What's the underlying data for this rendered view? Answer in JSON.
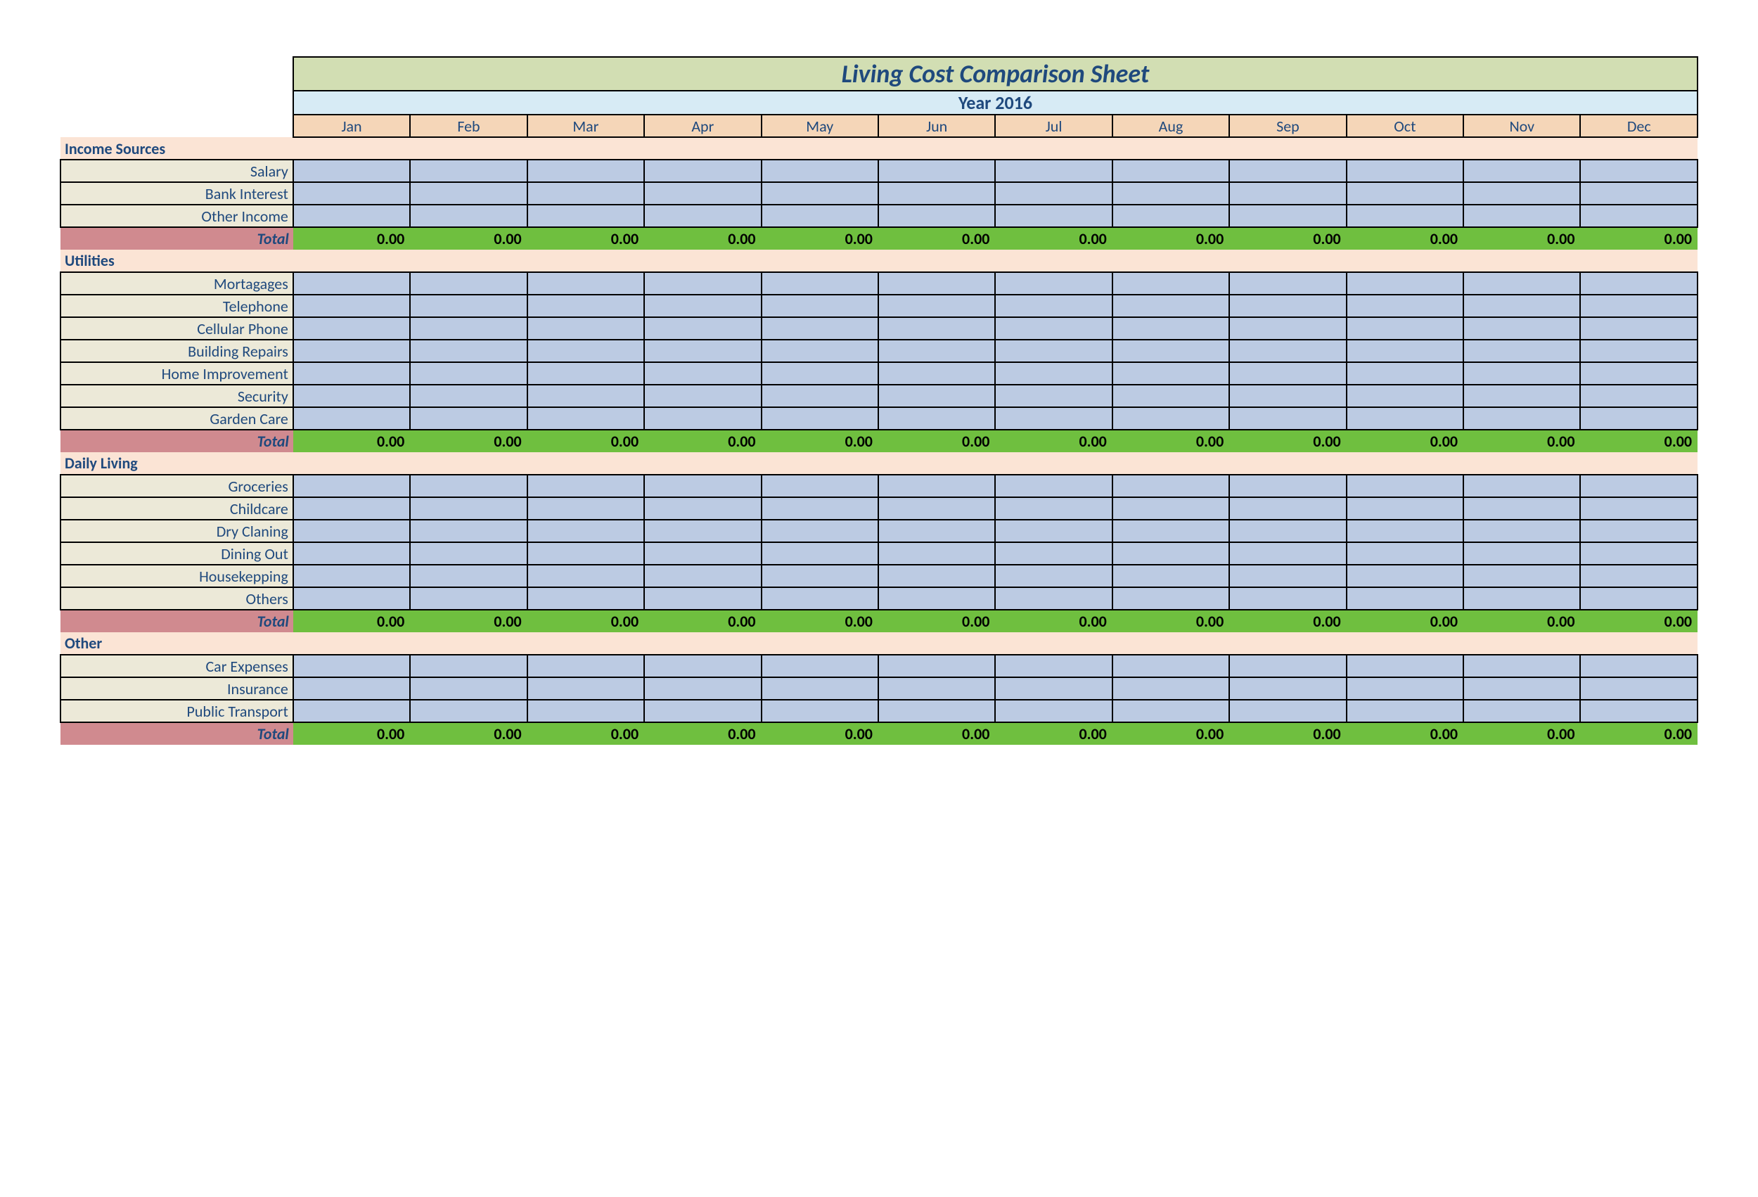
{
  "title": "Living Cost Comparison Sheet",
  "year_label": "Year 2016",
  "months": [
    "Jan",
    "Feb",
    "Mar",
    "Apr",
    "May",
    "Jun",
    "Jul",
    "Aug",
    "Sep",
    "Oct",
    "Nov",
    "Dec"
  ],
  "total_label": "Total",
  "total_value": "0.00",
  "sections": [
    {
      "name": "Income Sources",
      "rows": [
        "Salary",
        "Bank Interest",
        "Other Income"
      ]
    },
    {
      "name": "Utilities",
      "rows": [
        "Mortagages",
        "Telephone",
        "Cellular Phone",
        "Building Repairs",
        "Home Improvement",
        "Security",
        "Garden Care"
      ]
    },
    {
      "name": "Daily Living",
      "rows": [
        "Groceries",
        "Childcare",
        "Dry Claning",
        "Dining Out",
        "Housekepping",
        "Others"
      ]
    },
    {
      "name": "Other",
      "rows": [
        "Car Expenses",
        "Insurance",
        "Public Transport"
      ]
    }
  ],
  "colors": {
    "title_bg": "#d2deb3",
    "year_bg": "#d7ebf5",
    "month_bg": "#f5d6b8",
    "section_bg": "#fbe4d5",
    "label_bg": "#ece9d8",
    "data_bg": "#bccbe3",
    "total_label_bg": "#d08a8f",
    "total_value_bg": "#6fbf3f",
    "text_primary": "#1f497d",
    "border": "#000000"
  },
  "typography": {
    "title_fontsize": 36,
    "year_fontsize": 26,
    "body_fontsize": 22
  }
}
